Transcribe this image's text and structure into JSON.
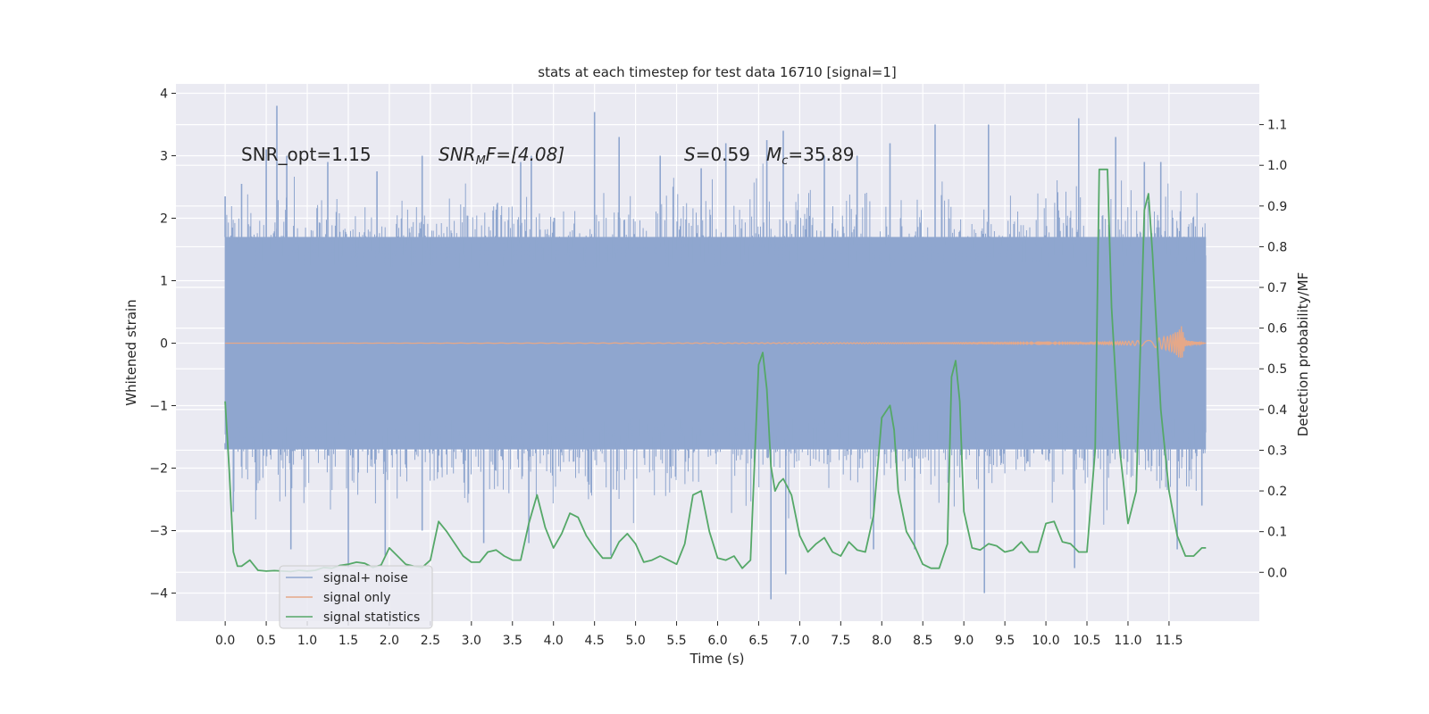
{
  "chart_data": {
    "type": "line",
    "title": "stats at each timestep for test data 16710 [signal=1]",
    "xlabel": "Time (s)",
    "ylabel": "Whitened strain",
    "ylabel_right": "Detection probability/MF",
    "xlim": [
      -0.6,
      12.6
    ],
    "ylim": [
      -4.45,
      4.15
    ],
    "ylim_right": [
      -0.12,
      1.2
    ],
    "x_ticks": [
      "0.0",
      "0.5",
      "1.0",
      "1.5",
      "2.0",
      "2.5",
      "3.0",
      "3.5",
      "4.0",
      "4.5",
      "5.0",
      "5.5",
      "6.0",
      "6.5",
      "7.0",
      "7.5",
      "8.0",
      "8.5",
      "9.0",
      "9.5",
      "10.0",
      "10.5",
      "11.0",
      "11.5"
    ],
    "y_ticks": [
      "−4",
      "−3",
      "−2",
      "−1",
      "0",
      "1",
      "2",
      "3",
      "4"
    ],
    "y_ticks_right": [
      "0.0",
      "0.1",
      "0.2",
      "0.3",
      "0.4",
      "0.5",
      "0.6",
      "0.7",
      "0.8",
      "0.9",
      "1.0",
      "1.1"
    ],
    "grid": true,
    "annotations": {
      "snr_opt": "SNR_opt=1.15",
      "snr_mf_main": "SNR",
      "snr_mf_sub": "M",
      "snr_mf_rest": "F=[4.08]",
      "s_label": "S",
      "s_value": "=0.59",
      "mc_label": "M",
      "mc_sub": "c",
      "mc_value": "=35.89"
    },
    "legend": {
      "position": "lower-left",
      "entries": [
        "signal+ noise",
        "signal only",
        "signal statistics"
      ]
    },
    "colors": {
      "noise": "#8fa6cf",
      "signal": "#dd8452",
      "stats": "#55a868",
      "background": "#eaeaf2",
      "grid": "#ffffff"
    },
    "series": [
      {
        "name": "signal+ noise",
        "axis": "left",
        "note_values": "dense noise, core envelope approx ±1.7, spikes up to 3.8 / down to −4.1",
        "x_range": [
          0.0,
          11.95
        ],
        "envelope_core": 1.7,
        "peaks_up": [
          [
            0.0,
            2.35
          ],
          [
            0.2,
            2.55
          ],
          [
            0.5,
            3.1
          ],
          [
            0.63,
            3.8
          ],
          [
            0.75,
            3.0
          ],
          [
            1.25,
            2.9
          ],
          [
            1.85,
            2.75
          ],
          [
            2.4,
            3.0
          ],
          [
            3.6,
            2.9
          ],
          [
            3.73,
            3.0
          ],
          [
            4.5,
            3.7
          ],
          [
            4.8,
            3.3
          ],
          [
            5.3,
            3.0
          ],
          [
            5.8,
            2.8
          ],
          [
            6.1,
            3.2
          ],
          [
            6.6,
            3.25
          ],
          [
            6.8,
            3.4
          ],
          [
            7.3,
            3.0
          ],
          [
            7.7,
            3.0
          ],
          [
            8.1,
            3.2
          ],
          [
            8.65,
            3.5
          ],
          [
            9.3,
            3.5
          ],
          [
            10.4,
            3.6
          ],
          [
            10.85,
            3.3
          ],
          [
            11.2,
            2.9
          ],
          [
            11.4,
            2.9
          ]
        ],
        "peaks_down": [
          [
            0.0,
            -1.6
          ],
          [
            0.1,
            -2.7
          ],
          [
            0.8,
            -3.3
          ],
          [
            1.5,
            -3.6
          ],
          [
            1.95,
            -3.4
          ],
          [
            2.4,
            -3.0
          ],
          [
            3.15,
            -3.2
          ],
          [
            3.7,
            -3.2
          ],
          [
            4.7,
            -3.4
          ],
          [
            6.65,
            -4.1
          ],
          [
            6.83,
            -3.7
          ],
          [
            7.9,
            -3.3
          ],
          [
            8.4,
            -3.3
          ],
          [
            9.25,
            -4.0
          ],
          [
            10.35,
            -3.6
          ],
          [
            11.6,
            -3.3
          ],
          [
            11.9,
            -2.6
          ]
        ]
      },
      {
        "name": "signal only",
        "axis": "left",
        "note_values": "flat near 0, chirp burst growing to ±0.28 at t≈11.65 then ending",
        "x": [
          0.0,
          10.5,
          11.0,
          11.3,
          11.5,
          11.6,
          11.65,
          11.7,
          11.95
        ],
        "amplitude": [
          0.0,
          0.01,
          0.03,
          0.06,
          0.12,
          0.2,
          0.28,
          0.05,
          0.0
        ]
      },
      {
        "name": "signal statistics",
        "axis": "right",
        "x": [
          0.0,
          0.05,
          0.1,
          0.15,
          0.2,
          0.3,
          0.4,
          0.5,
          0.6,
          0.7,
          0.8,
          0.9,
          1.0,
          1.1,
          1.2,
          1.3,
          1.4,
          1.5,
          1.6,
          1.7,
          1.8,
          1.9,
          2.0,
          2.1,
          2.2,
          2.3,
          2.4,
          2.5,
          2.6,
          2.7,
          2.8,
          2.9,
          3.0,
          3.1,
          3.2,
          3.3,
          3.4,
          3.5,
          3.6,
          3.7,
          3.8,
          3.9,
          4.0,
          4.1,
          4.2,
          4.3,
          4.4,
          4.5,
          4.6,
          4.7,
          4.8,
          4.9,
          5.0,
          5.1,
          5.2,
          5.3,
          5.4,
          5.5,
          5.6,
          5.7,
          5.8,
          5.9,
          6.0,
          6.1,
          6.2,
          6.3,
          6.4,
          6.5,
          6.55,
          6.6,
          6.65,
          6.7,
          6.75,
          6.8,
          6.9,
          7.0,
          7.1,
          7.2,
          7.3,
          7.4,
          7.5,
          7.6,
          7.7,
          7.8,
          7.9,
          8.0,
          8.1,
          8.15,
          8.2,
          8.3,
          8.4,
          8.5,
          8.6,
          8.7,
          8.8,
          8.85,
          8.9,
          8.95,
          9.0,
          9.1,
          9.2,
          9.3,
          9.4,
          9.5,
          9.6,
          9.7,
          9.8,
          9.9,
          10.0,
          10.1,
          10.2,
          10.3,
          10.4,
          10.5,
          10.6,
          10.65,
          10.7,
          10.75,
          10.8,
          10.9,
          11.0,
          11.1,
          11.2,
          11.25,
          11.3,
          11.4,
          11.5,
          11.6,
          11.7,
          11.8,
          11.9,
          11.95
        ],
        "values": [
          0.42,
          0.25,
          0.05,
          0.015,
          0.015,
          0.03,
          0.005,
          0.003,
          0.004,
          0.003,
          0.002,
          0.005,
          0.003,
          0.005,
          0.012,
          0.01,
          0.017,
          0.02,
          0.025,
          0.022,
          0.012,
          0.018,
          0.06,
          0.04,
          0.02,
          0.015,
          0.012,
          0.03,
          0.125,
          0.1,
          0.07,
          0.04,
          0.025,
          0.025,
          0.05,
          0.055,
          0.04,
          0.03,
          0.03,
          0.12,
          0.19,
          0.11,
          0.06,
          0.095,
          0.145,
          0.135,
          0.09,
          0.06,
          0.035,
          0.035,
          0.075,
          0.095,
          0.07,
          0.025,
          0.03,
          0.04,
          0.03,
          0.02,
          0.07,
          0.19,
          0.2,
          0.1,
          0.035,
          0.03,
          0.04,
          0.01,
          0.03,
          0.51,
          0.54,
          0.45,
          0.26,
          0.2,
          0.22,
          0.23,
          0.19,
          0.09,
          0.05,
          0.07,
          0.085,
          0.05,
          0.04,
          0.075,
          0.055,
          0.05,
          0.14,
          0.38,
          0.41,
          0.35,
          0.2,
          0.1,
          0.065,
          0.02,
          0.01,
          0.01,
          0.07,
          0.48,
          0.52,
          0.42,
          0.15,
          0.06,
          0.055,
          0.07,
          0.065,
          0.05,
          0.055,
          0.075,
          0.05,
          0.05,
          0.12,
          0.125,
          0.075,
          0.07,
          0.05,
          0.05,
          0.3,
          0.99,
          0.99,
          0.99,
          0.65,
          0.3,
          0.12,
          0.2,
          0.89,
          0.93,
          0.78,
          0.4,
          0.2,
          0.09,
          0.04,
          0.04,
          0.06,
          0.06
        ]
      }
    ]
  }
}
